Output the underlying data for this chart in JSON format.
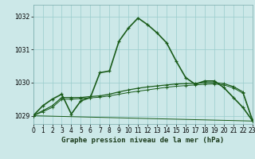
{
  "title": "Graphe pression niveau de la mer (hPa)",
  "background_color": "#cce8e8",
  "grid_color": "#99cccc",
  "line_color": "#1a5c1a",
  "xlim": [
    0,
    23
  ],
  "ylim": [
    1028.75,
    1032.35
  ],
  "yticks": [
    1029,
    1030,
    1031,
    1032
  ],
  "xticks": [
    0,
    1,
    2,
    3,
    4,
    5,
    6,
    7,
    8,
    9,
    10,
    11,
    12,
    13,
    14,
    15,
    16,
    17,
    18,
    19,
    20,
    21,
    22,
    23
  ],
  "series1_x": [
    0,
    1,
    2,
    3,
    4,
    5,
    6,
    7,
    8,
    9,
    10,
    11,
    12,
    13,
    14,
    15,
    16,
    17,
    18,
    19,
    20,
    21,
    22,
    23
  ],
  "series1_y": [
    1029.0,
    1029.3,
    1029.5,
    1029.65,
    1029.05,
    1029.45,
    1029.55,
    1030.3,
    1030.35,
    1031.25,
    1031.65,
    1031.95,
    1031.75,
    1031.5,
    1031.2,
    1030.65,
    1030.15,
    1029.95,
    1030.05,
    1030.05,
    1029.85,
    1029.55,
    1029.25,
    1028.85
  ],
  "series2_x": [
    0,
    1,
    2,
    3,
    4,
    5,
    6,
    7,
    8,
    9,
    10,
    11,
    12,
    13,
    14,
    15,
    16,
    17,
    18,
    19,
    20,
    21,
    22,
    23
  ],
  "series2_y": [
    1029.0,
    1029.15,
    1029.3,
    1029.55,
    1029.55,
    1029.55,
    1029.58,
    1029.6,
    1029.65,
    1029.72,
    1029.78,
    1029.83,
    1029.87,
    1029.9,
    1029.93,
    1029.96,
    1029.97,
    1029.98,
    1030.0,
    1030.0,
    1029.97,
    1029.88,
    1029.72,
    1028.88
  ],
  "series3_x": [
    0,
    1,
    2,
    3,
    4,
    5,
    6,
    7,
    8,
    9,
    10,
    11,
    12,
    13,
    14,
    15,
    16,
    17,
    18,
    19,
    20,
    21,
    22,
    23
  ],
  "series3_y": [
    1029.0,
    1029.12,
    1029.25,
    1029.5,
    1029.5,
    1029.52,
    1029.54,
    1029.56,
    1029.6,
    1029.65,
    1029.7,
    1029.74,
    1029.78,
    1029.82,
    1029.86,
    1029.89,
    1029.91,
    1029.93,
    1029.95,
    1029.96,
    1029.93,
    1029.84,
    1029.68,
    1028.84
  ],
  "series4_x": [
    0,
    23
  ],
  "series4_y": [
    1029.0,
    1028.84
  ],
  "xlabel_fontsize": 6.5,
  "tick_fontsize": 5.5
}
